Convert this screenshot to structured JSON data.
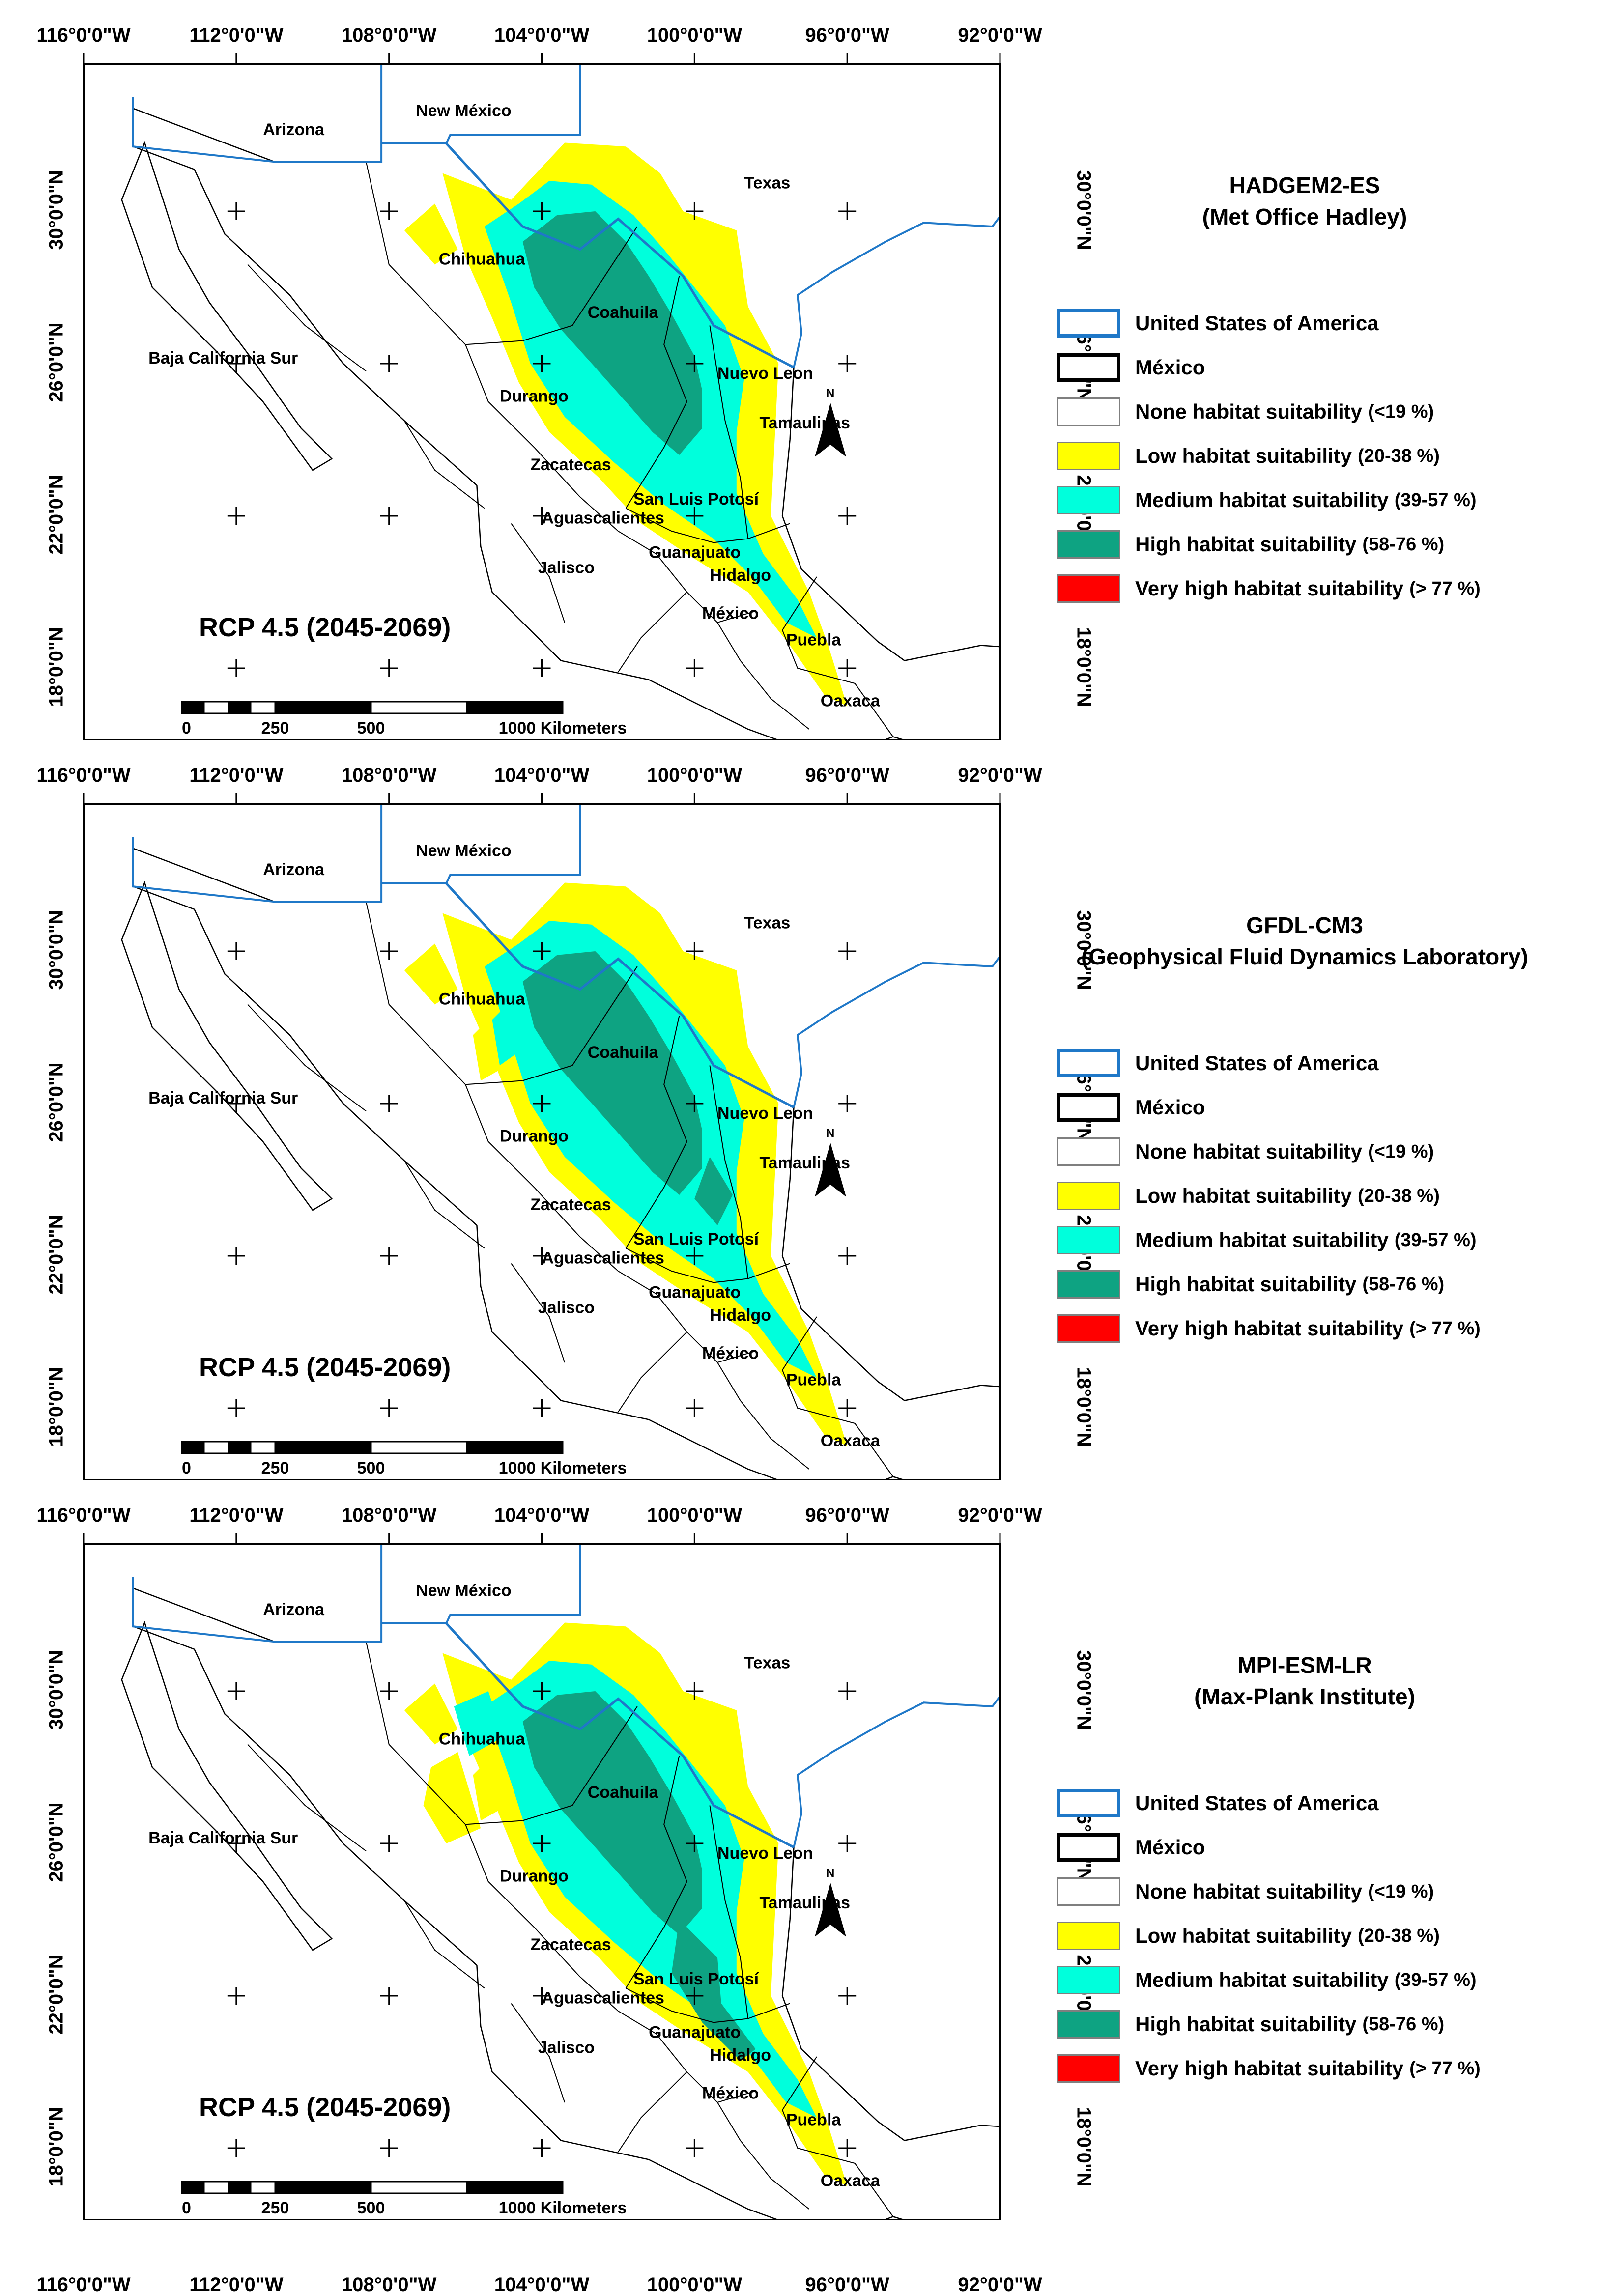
{
  "axis_labels": {
    "longitudes": [
      "116°0'0\"W",
      "112°0'0\"W",
      "108°0'0\"W",
      "104°0'0\"W",
      "100°0'0\"W",
      "96°0'0\"W",
      "92°0'0\"W"
    ],
    "latitudes": [
      "30°0'0\"N",
      "26°0'0\"N",
      "22°0'0\"N",
      "18°0'0\"N"
    ]
  },
  "places": {
    "arizona": "Arizona",
    "new_mexico": "New México",
    "texas": "Texas",
    "chihuahua": "Chihuahua",
    "coahuila": "Coahuila",
    "baja_california_sur": "Baja California Sur",
    "durango": "Durango",
    "nuevo_leon": "Nuevo Leon",
    "tamaulipas": "Tamaulipas",
    "zacatecas": "Zacatecas",
    "san_luis_potosi": "San Luis Potosí",
    "aguascalientes": "Aguascalientes",
    "guanajuato": "Guanajuato",
    "jalisco": "Jalisco",
    "hidalgo": "Hidalgo",
    "mexico": "México",
    "puebla": "Puebla",
    "oaxaca": "Oaxaca"
  },
  "north_arrow_label": "N",
  "scale_bar": {
    "label_0": "0",
    "label_250": "250",
    "label_500": "500",
    "label_1000": "1000 Kilometers"
  },
  "legend": {
    "items": [
      {
        "label": "United States of America",
        "range": "",
        "color": "#1f78c8"
      },
      {
        "label": "México",
        "range": "",
        "color": "#000000"
      },
      {
        "label": "None habitat suitability",
        "range": "(<19 %)",
        "color": "#ffffff"
      },
      {
        "label": "Low habitat suitability",
        "range": "(20-38 %)",
        "color": "#ffff00"
      },
      {
        "label": "Medium habitat suitability",
        "range": "(39-57 %)",
        "color": "#00ffdc"
      },
      {
        "label": "High habitat suitability",
        "range": "(58-76 %)",
        "color": "#0ea382"
      },
      {
        "label": "Very high habitat suitability",
        "range": "(> 77 %)",
        "color": "#ff0000"
      }
    ]
  },
  "panels": [
    {
      "model": "HADGEM2-ES",
      "institution": "(Met Office Hadley)",
      "scenario": "RCP 4.5 (2045-2069)"
    },
    {
      "model": "GFDL-CM3",
      "institution": "(Geophysical Fluid Dynamics Laboratory)",
      "scenario": "RCP 4.5 (2045-2069)"
    },
    {
      "model": "MPI-ESM-LR",
      "institution": "(Max-Plank Institute)",
      "scenario": "RCP 4.5 (2045-2069)"
    }
  ]
}
